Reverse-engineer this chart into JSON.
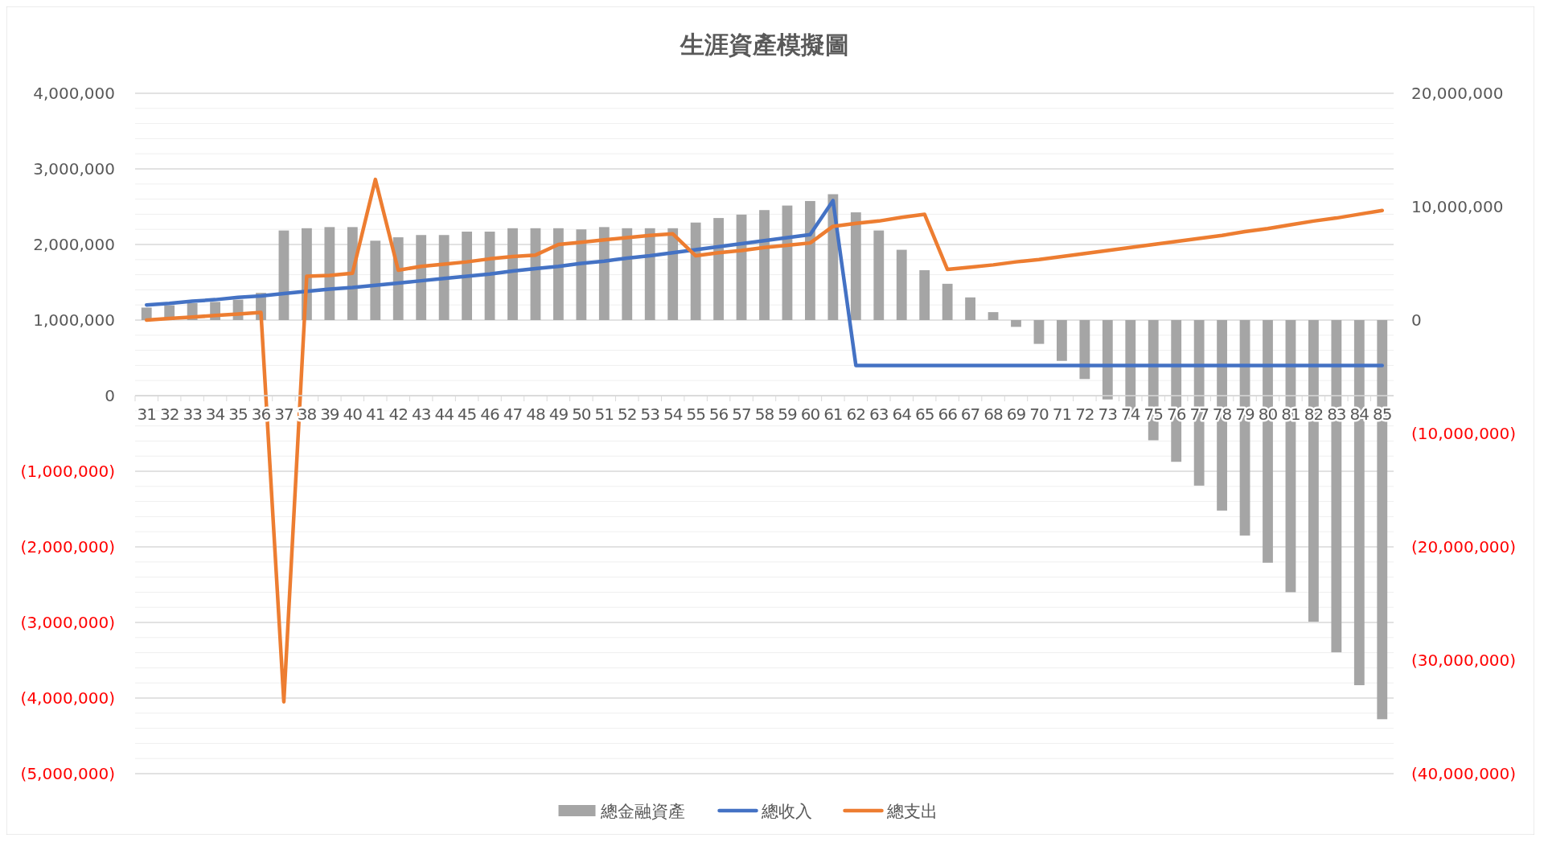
{
  "chart_data": {
    "type": "bar",
    "title": "生涯資產模擬圖",
    "categories": [
      "31",
      "32",
      "33",
      "34",
      "35",
      "36",
      "37",
      "38",
      "39",
      "40",
      "41",
      "42",
      "43",
      "44",
      "45",
      "46",
      "47",
      "48",
      "49",
      "50",
      "51",
      "52",
      "53",
      "54",
      "55",
      "56",
      "57",
      "58",
      "59",
      "60",
      "61",
      "62",
      "63",
      "64",
      "65",
      "66",
      "67",
      "68",
      "69",
      "70",
      "71",
      "72",
      "73",
      "74",
      "75",
      "76",
      "77",
      "78",
      "79",
      "80",
      "81",
      "82",
      "83",
      "84",
      "85"
    ],
    "series": [
      {
        "name": "總金融資產",
        "axis": "y2",
        "color": "#a5a5a5",
        "values": [
          1100000,
          1300000,
          1500000,
          1600000,
          1800000,
          2400000,
          7900000,
          8100000,
          8200000,
          8200000,
          7000000,
          7300000,
          7500000,
          7500000,
          7800000,
          7800000,
          8100000,
          8100000,
          8100000,
          8000000,
          8200000,
          8100000,
          8100000,
          8100000,
          8600000,
          9000000,
          9300000,
          9700000,
          10100000,
          10500000,
          11100000,
          9500000,
          7900000,
          6200000,
          4400000,
          3200000,
          2000000,
          700000,
          -600000,
          -2100000,
          -3600000,
          -5200000,
          -7000000,
          -8700000,
          -10600000,
          -12500000,
          -14600000,
          -16800000,
          -19000000,
          -21400000,
          -24000000,
          -26600000,
          -29300000,
          -32200000,
          -35200000
        ]
      },
      {
        "name": "總收入",
        "type": "line",
        "color": "#4472c4",
        "values": [
          1200000,
          1220000,
          1250000,
          1270000,
          1300000,
          1320000,
          1350000,
          1380000,
          1410000,
          1430000,
          1460000,
          1490000,
          1520000,
          1550000,
          1580000,
          1610000,
          1650000,
          1680000,
          1710000,
          1750000,
          1780000,
          1820000,
          1850000,
          1890000,
          1930000,
          1970000,
          2010000,
          2050000,
          2090000,
          2130000,
          2580000,
          400000,
          400000,
          400000,
          400000,
          400000,
          400000,
          400000,
          400000,
          400000,
          400000,
          400000,
          400000,
          400000,
          400000,
          400000,
          400000,
          400000,
          400000,
          400000,
          400000,
          400000,
          400000,
          400000,
          400000
        ]
      },
      {
        "name": "總支出",
        "type": "line",
        "color": "#ed7d31",
        "values": [
          1000000,
          1020000,
          1040000,
          1060000,
          1080000,
          1100000,
          -4050000,
          1580000,
          1590000,
          1620000,
          2860000,
          1660000,
          1710000,
          1740000,
          1770000,
          1810000,
          1840000,
          1860000,
          2000000,
          2030000,
          2060000,
          2090000,
          2120000,
          2140000,
          1850000,
          1890000,
          1920000,
          1960000,
          1990000,
          2020000,
          2240000,
          2280000,
          2310000,
          2360000,
          2400000,
          1670000,
          1700000,
          1730000,
          1770000,
          1800000,
          1840000,
          1880000,
          1920000,
          1960000,
          2000000,
          2040000,
          2080000,
          2120000,
          2170000,
          2210000,
          2260000,
          2310000,
          2350000,
          2400000,
          2450000
        ]
      }
    ],
    "ylim": [
      -5000000,
      4000000
    ],
    "yticks": [
      {
        "value": -5000000,
        "label": "(5,000,000)"
      },
      {
        "value": -4000000,
        "label": "(4,000,000)"
      },
      {
        "value": -3000000,
        "label": "(3,000,000)"
      },
      {
        "value": -2000000,
        "label": "(2,000,000)"
      },
      {
        "value": -1000000,
        "label": "(1,000,000)"
      },
      0,
      {
        "value": 1000000,
        "label": "1,000,000"
      },
      {
        "value": 2000000,
        "label": "2,000,000"
      },
      {
        "value": 3000000,
        "label": "3,000,000"
      },
      {
        "value": 4000000,
        "label": "4,000,000"
      }
    ],
    "y2lim": [
      -40000000,
      20000000
    ],
    "y2ticks": [
      {
        "value": -40000000,
        "label": "(40,000,000)"
      },
      {
        "value": -30000000,
        "label": "(30,000,000)"
      },
      {
        "value": -20000000,
        "label": "(20,000,000)"
      },
      {
        "value": -10000000,
        "label": "(10,000,000)"
      },
      0,
      {
        "value": 10000000,
        "label": "10,000,000"
      },
      {
        "value": 20000000,
        "label": "20,000,000"
      }
    ],
    "grid": true,
    "legend": "bottom",
    "marker": "none",
    "line_style": "solid"
  }
}
